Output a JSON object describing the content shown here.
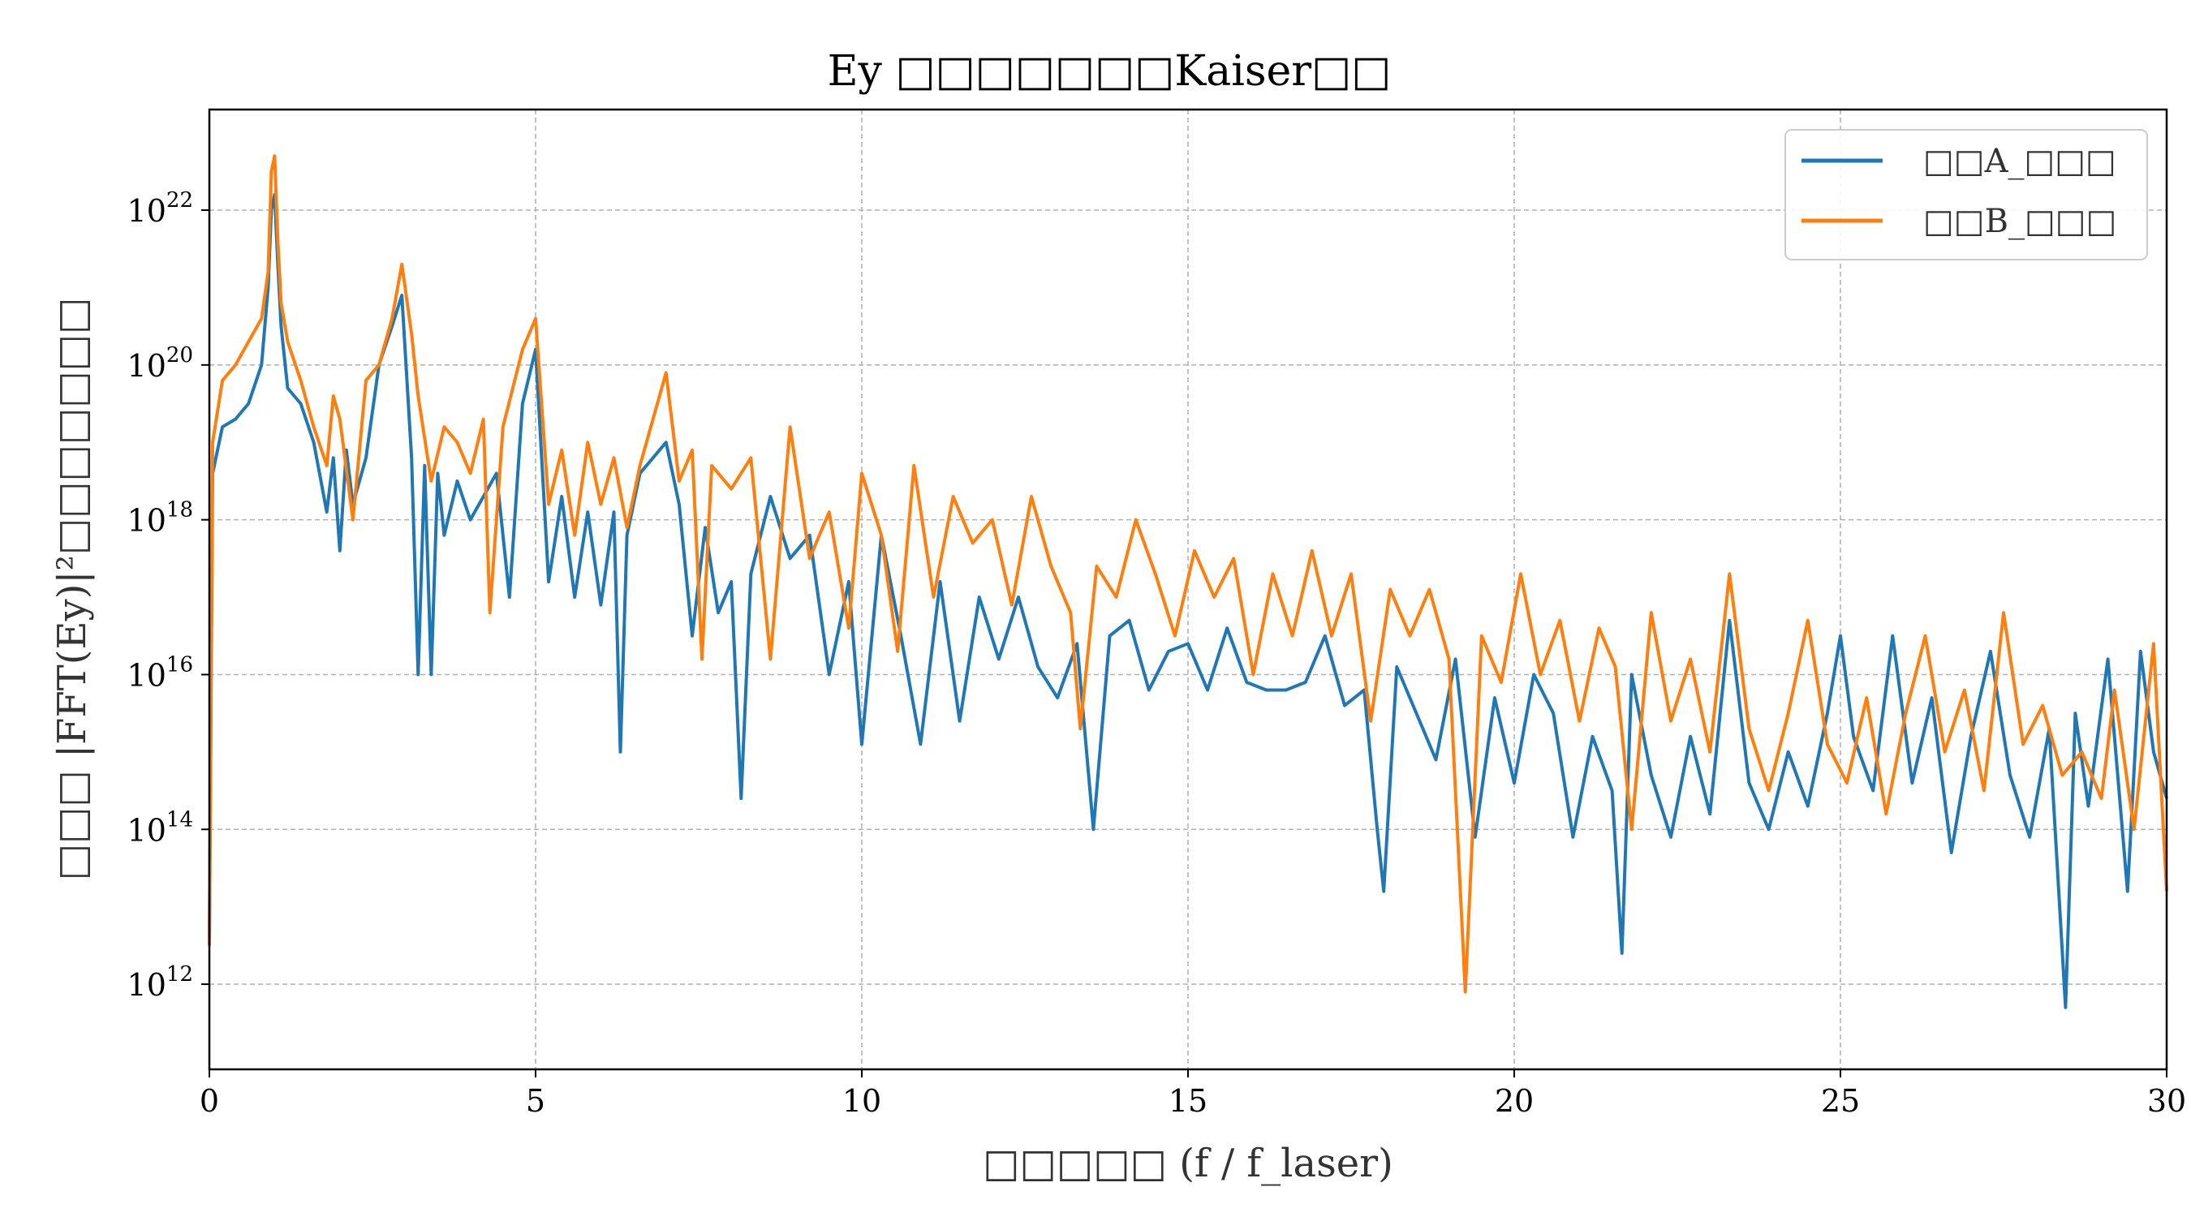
{
  "chart_data": {
    "type": "line",
    "title": "Ey □□□□□□□Kaiser□□",
    "xlabel": "□□□□□ (f / f_laser)",
    "ylabel": "□□□ |FFT(Ey)|²□□□□□□□",
    "xlim": [
      0,
      30
    ],
    "ylim_log10": [
      10.9,
      23.3
    ],
    "y_scale": "log",
    "grid": true,
    "legend_position": "top-right",
    "x_ticks": [
      {
        "value": 0,
        "label": "0"
      },
      {
        "value": 5,
        "label": "5"
      },
      {
        "value": 10,
        "label": "10"
      },
      {
        "value": 15,
        "label": "15"
      },
      {
        "value": 20,
        "label": "20"
      },
      {
        "value": 25,
        "label": "25"
      },
      {
        "value": 30,
        "label": "30"
      }
    ],
    "y_ticks": [
      {
        "exponent": 12,
        "base": "10",
        "exp": "12"
      },
      {
        "exponent": 14,
        "base": "10",
        "exp": "14"
      },
      {
        "exponent": 16,
        "base": "10",
        "exp": "16"
      },
      {
        "exponent": 18,
        "base": "10",
        "exp": "18"
      },
      {
        "exponent": 20,
        "base": "10",
        "exp": "20"
      },
      {
        "exponent": 22,
        "base": "10",
        "exp": "22"
      }
    ],
    "series": [
      {
        "name": "□□A_□□□",
        "color": "#1f77b4",
        "x": [
          0,
          0.05,
          0.2,
          0.4,
          0.6,
          0.8,
          0.9,
          0.95,
          1.0,
          1.05,
          1.1,
          1.2,
          1.4,
          1.6,
          1.8,
          1.9,
          2.0,
          2.1,
          2.2,
          2.4,
          2.6,
          2.8,
          2.95,
          3.1,
          3.2,
          3.3,
          3.4,
          3.5,
          3.6,
          3.8,
          4.0,
          4.2,
          4.4,
          4.6,
          4.8,
          5.0,
          5.2,
          5.4,
          5.6,
          5.8,
          6.0,
          6.2,
          6.3,
          6.4,
          6.6,
          6.8,
          7.0,
          7.2,
          7.4,
          7.6,
          7.8,
          8.0,
          8.15,
          8.3,
          8.6,
          8.9,
          9.2,
          9.5,
          9.8,
          10.0,
          10.3,
          10.6,
          10.9,
          11.2,
          11.5,
          11.8,
          12.1,
          12.4,
          12.7,
          13.0,
          13.3,
          13.55,
          13.8,
          14.1,
          14.4,
          14.7,
          15.0,
          15.3,
          15.6,
          15.9,
          16.2,
          16.5,
          16.8,
          17.1,
          17.4,
          17.7,
          17.9,
          18.0,
          18.2,
          18.5,
          18.8,
          19.1,
          19.4,
          19.7,
          20.0,
          20.3,
          20.6,
          20.9,
          21.2,
          21.5,
          21.65,
          21.8,
          22.1,
          22.4,
          22.7,
          23.0,
          23.3,
          23.6,
          23.9,
          24.2,
          24.5,
          24.8,
          25.0,
          25.2,
          25.5,
          25.8,
          26.1,
          26.4,
          26.7,
          27.0,
          27.3,
          27.6,
          27.9,
          28.2,
          28.45,
          28.6,
          28.8,
          29.1,
          29.4,
          29.6,
          29.8,
          30.0
        ],
        "y_log10": [
          12.5,
          18.6,
          19.2,
          19.3,
          19.5,
          20.0,
          21.0,
          22.0,
          22.2,
          21.3,
          20.5,
          19.7,
          19.5,
          19.0,
          18.1,
          18.8,
          17.6,
          18.9,
          18.2,
          18.8,
          20.0,
          20.5,
          20.9,
          18.8,
          16.0,
          18.7,
          16.0,
          18.6,
          17.8,
          18.5,
          18.0,
          18.3,
          18.6,
          17.0,
          19.5,
          20.2,
          17.2,
          18.3,
          17.0,
          18.1,
          16.9,
          18.1,
          15.0,
          17.8,
          18.6,
          18.8,
          19.0,
          18.2,
          16.5,
          17.9,
          16.8,
          17.2,
          14.4,
          17.3,
          18.3,
          17.5,
          17.8,
          16.0,
          17.2,
          15.1,
          17.8,
          16.5,
          15.1,
          17.2,
          15.4,
          17.0,
          16.2,
          17.0,
          16.1,
          15.7,
          16.4,
          14.0,
          16.5,
          16.7,
          15.8,
          16.3,
          16.4,
          15.8,
          16.6,
          15.9,
          15.8,
          15.8,
          15.9,
          16.5,
          15.6,
          15.8,
          14.0,
          13.2,
          16.1,
          15.5,
          14.9,
          16.2,
          13.9,
          15.7,
          14.6,
          16.0,
          15.5,
          13.9,
          15.2,
          14.5,
          12.4,
          16.0,
          14.7,
          13.9,
          15.2,
          14.2,
          16.7,
          14.6,
          14.0,
          15.0,
          14.3,
          15.5,
          16.5,
          15.2,
          14.5,
          16.5,
          14.6,
          15.7,
          13.7,
          15.2,
          16.3,
          14.7,
          13.9,
          15.3,
          11.7,
          15.5,
          14.3,
          16.2,
          13.2,
          16.3,
          15.0,
          14.4
        ]
      },
      {
        "name": "□□B_□□□",
        "color": "#ff7f0e",
        "x": [
          0,
          0.05,
          0.2,
          0.4,
          0.6,
          0.8,
          0.9,
          0.95,
          1.0,
          1.05,
          1.1,
          1.2,
          1.4,
          1.6,
          1.8,
          1.9,
          2.0,
          2.2,
          2.4,
          2.6,
          2.8,
          2.95,
          3.1,
          3.2,
          3.4,
          3.6,
          3.8,
          4.0,
          4.2,
          4.3,
          4.5,
          4.8,
          5.0,
          5.2,
          5.4,
          5.6,
          5.8,
          6.0,
          6.2,
          6.4,
          6.6,
          6.8,
          7.0,
          7.2,
          7.4,
          7.55,
          7.7,
          8.0,
          8.3,
          8.6,
          8.9,
          9.2,
          9.5,
          9.8,
          10.0,
          10.3,
          10.55,
          10.8,
          11.1,
          11.4,
          11.7,
          12.0,
          12.3,
          12.6,
          12.9,
          13.2,
          13.35,
          13.6,
          13.9,
          14.2,
          14.5,
          14.8,
          15.1,
          15.4,
          15.7,
          16.0,
          16.3,
          16.6,
          16.9,
          17.2,
          17.5,
          17.8,
          18.1,
          18.4,
          18.7,
          19.0,
          19.25,
          19.5,
          19.8,
          20.1,
          20.4,
          20.7,
          21.0,
          21.3,
          21.55,
          21.8,
          22.1,
          22.4,
          22.7,
          23.0,
          23.3,
          23.6,
          23.9,
          24.2,
          24.5,
          24.8,
          25.1,
          25.4,
          25.7,
          26.0,
          26.3,
          26.6,
          26.9,
          27.2,
          27.5,
          27.8,
          28.1,
          28.4,
          28.7,
          29.0,
          29.2,
          29.5,
          29.8,
          30.0
        ],
        "y_log10": [
          12.5,
          19.0,
          19.8,
          20.0,
          20.3,
          20.6,
          21.2,
          22.5,
          22.7,
          21.6,
          20.8,
          20.3,
          19.8,
          19.2,
          18.7,
          19.6,
          19.3,
          18.0,
          19.8,
          20.0,
          20.6,
          21.3,
          20.4,
          19.6,
          18.5,
          19.2,
          19.0,
          18.6,
          19.3,
          16.8,
          19.2,
          20.2,
          20.6,
          18.2,
          18.9,
          17.8,
          19.0,
          18.2,
          18.8,
          17.9,
          18.7,
          19.3,
          19.9,
          18.5,
          18.9,
          16.2,
          18.7,
          18.4,
          18.8,
          16.2,
          19.2,
          17.5,
          18.1,
          16.6,
          18.6,
          17.8,
          16.3,
          18.7,
          17.0,
          18.3,
          17.7,
          18.0,
          16.9,
          18.3,
          17.4,
          16.8,
          15.3,
          17.4,
          17.0,
          18.0,
          17.3,
          16.5,
          17.6,
          17.0,
          17.5,
          16.0,
          17.3,
          16.5,
          17.6,
          16.5,
          17.3,
          15.4,
          17.1,
          16.5,
          17.1,
          16.2,
          11.9,
          16.5,
          15.9,
          17.3,
          16.0,
          16.7,
          15.4,
          16.6,
          16.1,
          14.0,
          16.8,
          15.4,
          16.2,
          15.0,
          17.3,
          15.3,
          14.5,
          15.5,
          16.7,
          15.1,
          14.6,
          15.7,
          14.2,
          15.5,
          16.5,
          15.0,
          15.8,
          14.5,
          16.8,
          15.1,
          15.6,
          14.7,
          15.0,
          14.4,
          15.8,
          14.0,
          16.4,
          13.2
        ]
      }
    ]
  }
}
